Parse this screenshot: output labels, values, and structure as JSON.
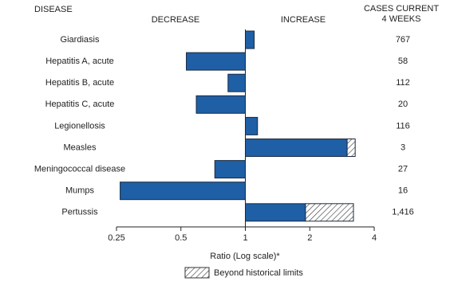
{
  "chart_data": {
    "type": "hbar-log",
    "headers": {
      "disease": "DISEASE",
      "decrease": "DECREASE",
      "increase": "INCREASE",
      "cases": [
        "CASES CURRENT",
        "4 WEEKS"
      ]
    },
    "categories": [
      "Giardiasis",
      "Hepatitis A, acute",
      "Hepatitis B, acute",
      "Hepatitis C, acute",
      "Legionellosis",
      "Measles",
      "Meningococcal disease",
      "Mumps",
      "Pertussis"
    ],
    "values": [
      1.1,
      0.53,
      0.83,
      0.59,
      1.14,
      2.99,
      0.72,
      0.26,
      1.91
    ],
    "beyond_limits": [
      null,
      null,
      null,
      null,
      null,
      3.26,
      null,
      null,
      3.2
    ],
    "cases": [
      767,
      58,
      112,
      20,
      116,
      3,
      27,
      16,
      1416
    ],
    "cases_labels": [
      "767",
      "58",
      "112",
      "20",
      "116",
      "3",
      "27",
      "16",
      "1,416"
    ],
    "color": "#1f5fa5",
    "log_scale": true,
    "xlim": [
      0.25,
      4
    ],
    "xticks": [
      0.25,
      0.5,
      1,
      2,
      4
    ],
    "xlabel": "Ratio (Log scale)*",
    "legend": "Beyond historical limits"
  }
}
